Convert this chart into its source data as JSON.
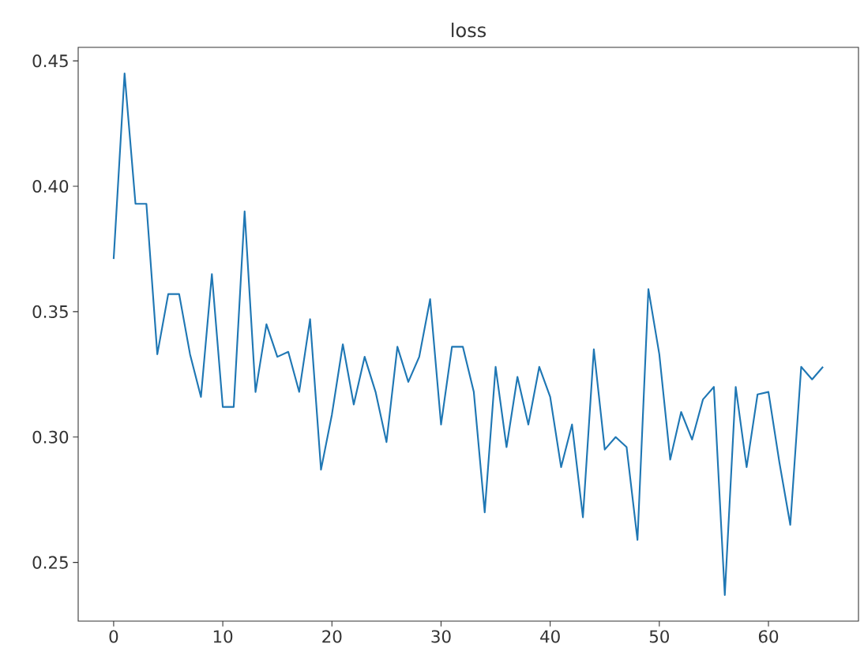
{
  "chart_data": {
    "type": "line",
    "title": "loss",
    "x": [
      0,
      1,
      2,
      3,
      4,
      5,
      6,
      7,
      8,
      9,
      10,
      11,
      12,
      13,
      14,
      15,
      16,
      17,
      18,
      19,
      20,
      21,
      22,
      23,
      24,
      25,
      26,
      27,
      28,
      29,
      30,
      31,
      32,
      33,
      34,
      35,
      36,
      37,
      38,
      39,
      40,
      41,
      42,
      43,
      44,
      45,
      46,
      47,
      48,
      49,
      50,
      51,
      52,
      53,
      54,
      55,
      56,
      57,
      58,
      59,
      60,
      61,
      62,
      63,
      64,
      65
    ],
    "series": [
      {
        "color": "#1f77b4",
        "values": [
          0.371,
          0.445,
          0.393,
          0.393,
          0.333,
          0.357,
          0.357,
          0.333,
          0.316,
          0.365,
          0.312,
          0.312,
          0.39,
          0.318,
          0.345,
          0.332,
          0.334,
          0.318,
          0.347,
          0.287,
          0.309,
          0.337,
          0.313,
          0.332,
          0.318,
          0.298,
          0.336,
          0.322,
          0.332,
          0.355,
          0.305,
          0.336,
          0.336,
          0.318,
          0.27,
          0.328,
          0.296,
          0.324,
          0.305,
          0.328,
          0.316,
          0.288,
          0.305,
          0.268,
          0.335,
          0.295,
          0.3,
          0.296,
          0.259,
          0.359,
          0.333,
          0.291,
          0.31,
          0.299,
          0.315,
          0.32,
          0.237,
          0.32,
          0.288,
          0.317,
          0.318,
          0.29,
          0.265,
          0.328,
          0.323,
          0.328
        ]
      }
    ],
    "xlim": [
      -3.25,
      68.25
    ],
    "ylim": [
      0.2266,
      0.4554
    ],
    "xticks": [
      0,
      10,
      20,
      30,
      40,
      50,
      60
    ],
    "yticks": [
      {
        "value": 0.25,
        "label": "0.25"
      },
      {
        "value": 0.3,
        "label": "0.30"
      },
      {
        "value": 0.35,
        "label": "0.35"
      },
      {
        "value": 0.4,
        "label": "0.40"
      },
      {
        "value": 0.45,
        "label": "0.45"
      }
    ],
    "grid": false
  }
}
